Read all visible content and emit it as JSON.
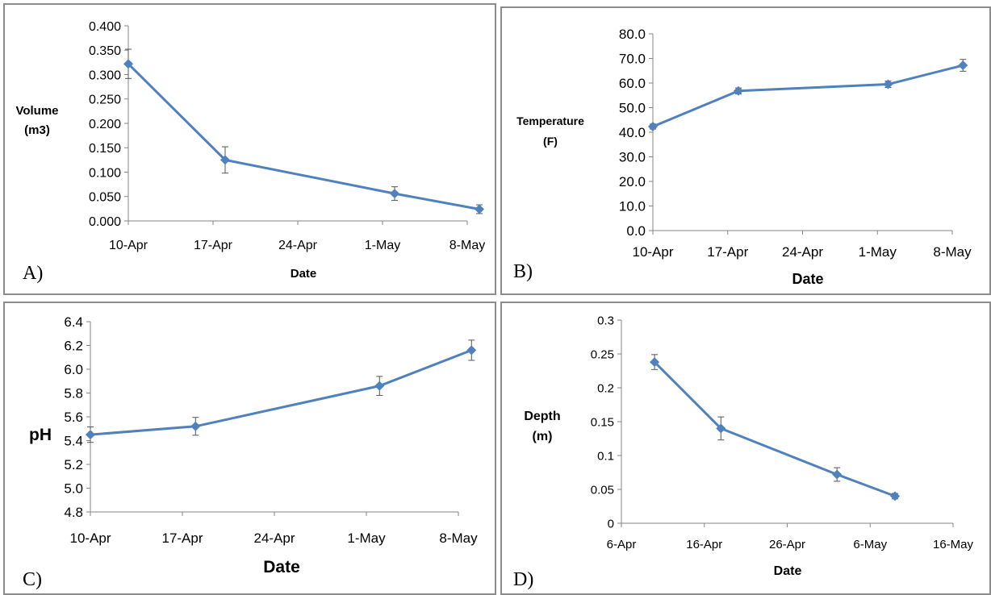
{
  "line_color": "#4f81bd",
  "axis_color": "#868686",
  "chart_data": [
    {
      "id": "A",
      "panel_label": "A)",
      "type": "line",
      "xlabel": "Date",
      "ylabel": [
        "Volume",
        "(m3)"
      ],
      "ylim": [
        0,
        0.4
      ],
      "ytick_labels": [
        "0.000",
        "0.050",
        "0.100",
        "0.150",
        "0.200",
        "0.250",
        "0.300",
        "0.350",
        "0.400"
      ],
      "xtick_labels": [
        "10-Apr",
        "17-Apr",
        "24-Apr",
        "1-May",
        "8-May"
      ],
      "x_days": [
        0,
        7,
        14,
        21,
        28
      ],
      "series": [
        {
          "x": [
            "10-Apr",
            "18-Apr",
            "2-May",
            "9-May"
          ],
          "x_days": [
            0,
            8,
            22,
            29
          ],
          "values": [
            0.322,
            0.125,
            0.056,
            0.024
          ],
          "errors": [
            0.03,
            0.027,
            0.014,
            0.009
          ]
        }
      ]
    },
    {
      "id": "B",
      "panel_label": "B)",
      "type": "line",
      "xlabel": "Date",
      "ylabel": [
        "Temperature",
        "(F)"
      ],
      "ylim": [
        0,
        80
      ],
      "ytick_labels": [
        "0.0",
        "10.0",
        "20.0",
        "30.0",
        "40.0",
        "50.0",
        "60.0",
        "70.0",
        "80.0"
      ],
      "xtick_labels": [
        "10-Apr",
        "17-Apr",
        "24-Apr",
        "1-May",
        "8-May"
      ],
      "x_days": [
        0,
        7,
        14,
        21,
        28
      ],
      "series": [
        {
          "x": [
            "10-Apr",
            "18-Apr",
            "2-May",
            "9-May"
          ],
          "x_days": [
            0,
            8,
            22,
            29
          ],
          "values": [
            42.3,
            56.8,
            59.5,
            67.2
          ],
          "errors": [
            1.0,
            1.2,
            1.3,
            2.4
          ]
        }
      ]
    },
    {
      "id": "C",
      "panel_label": "C)",
      "type": "line",
      "xlabel": "Date",
      "ylabel": [
        "pH"
      ],
      "ylim": [
        4.8,
        6.4
      ],
      "ytick_labels": [
        "4.8",
        "5.0",
        "5.2",
        "5.4",
        "5.6",
        "5.8",
        "6.0",
        "6.2",
        "6.4"
      ],
      "xtick_labels": [
        "10-Apr",
        "17-Apr",
        "24-Apr",
        "1-May",
        "8-May"
      ],
      "x_days": [
        0,
        7,
        14,
        21,
        28
      ],
      "series": [
        {
          "x": [
            "10-Apr",
            "18-Apr",
            "2-May",
            "9-May"
          ],
          "x_days": [
            0,
            8,
            22,
            29
          ],
          "values": [
            5.45,
            5.52,
            5.86,
            6.16
          ],
          "errors": [
            0.065,
            0.075,
            0.08,
            0.085
          ]
        }
      ]
    },
    {
      "id": "D",
      "panel_label": "D)",
      "type": "line",
      "xlabel": "Date",
      "ylabel": [
        "Depth",
        "(m)"
      ],
      "ylim": [
        0,
        0.3
      ],
      "ytick_labels": [
        "0",
        "0.05",
        "0.1",
        "0.15",
        "0.2",
        "0.25",
        "0.3"
      ],
      "xtick_labels": [
        "6-Apr",
        "16-Apr",
        "26-Apr",
        "6-May",
        "16-May"
      ],
      "x_days": [
        0,
        10,
        20,
        30,
        40
      ],
      "series": [
        {
          "x": [
            "10-Apr",
            "18-Apr",
            "2-May",
            "9-May"
          ],
          "x_days": [
            4,
            12,
            26,
            33
          ],
          "values": [
            0.238,
            0.14,
            0.072,
            0.04
          ],
          "errors": [
            0.011,
            0.017,
            0.01,
            0.004
          ]
        }
      ]
    }
  ]
}
